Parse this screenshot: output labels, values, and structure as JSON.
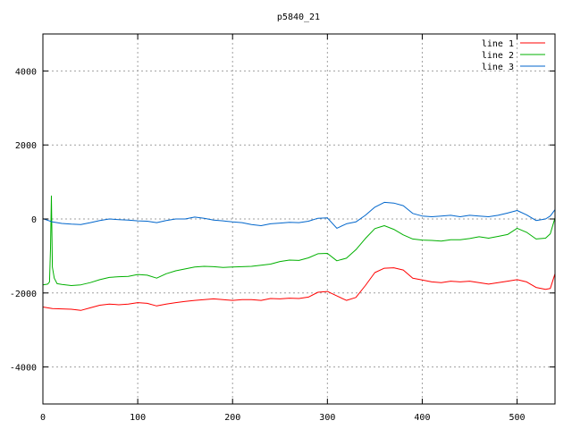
{
  "chart_data": {
    "type": "line",
    "title": "p5840_21",
    "xlabel": "",
    "ylabel": "",
    "xlim": [
      0,
      540
    ],
    "ylim": [
      -5000,
      5000
    ],
    "x_ticks": [
      0,
      100,
      200,
      300,
      400,
      500
    ],
    "y_ticks": [
      -4000,
      -2000,
      0,
      2000,
      4000
    ],
    "grid": true,
    "legend_position": "top-right",
    "series": [
      {
        "name": "line 1",
        "color": "#ff0000",
        "points": [
          [
            0,
            -2380
          ],
          [
            10,
            -2420
          ],
          [
            20,
            -2430
          ],
          [
            30,
            -2440
          ],
          [
            40,
            -2470
          ],
          [
            50,
            -2400
          ],
          [
            60,
            -2330
          ],
          [
            70,
            -2300
          ],
          [
            80,
            -2320
          ],
          [
            90,
            -2300
          ],
          [
            100,
            -2260
          ],
          [
            110,
            -2280
          ],
          [
            120,
            -2350
          ],
          [
            130,
            -2300
          ],
          [
            140,
            -2260
          ],
          [
            150,
            -2230
          ],
          [
            160,
            -2200
          ],
          [
            170,
            -2180
          ],
          [
            180,
            -2160
          ],
          [
            190,
            -2180
          ],
          [
            200,
            -2200
          ],
          [
            210,
            -2180
          ],
          [
            220,
            -2180
          ],
          [
            230,
            -2200
          ],
          [
            240,
            -2150
          ],
          [
            250,
            -2160
          ],
          [
            260,
            -2140
          ],
          [
            270,
            -2150
          ],
          [
            280,
            -2110
          ],
          [
            290,
            -1980
          ],
          [
            300,
            -1960
          ],
          [
            310,
            -2080
          ],
          [
            320,
            -2200
          ],
          [
            330,
            -2120
          ],
          [
            340,
            -1800
          ],
          [
            350,
            -1450
          ],
          [
            360,
            -1330
          ],
          [
            370,
            -1320
          ],
          [
            380,
            -1380
          ],
          [
            390,
            -1600
          ],
          [
            400,
            -1650
          ],
          [
            410,
            -1700
          ],
          [
            420,
            -1720
          ],
          [
            430,
            -1680
          ],
          [
            440,
            -1700
          ],
          [
            450,
            -1680
          ],
          [
            460,
            -1720
          ],
          [
            470,
            -1760
          ],
          [
            480,
            -1720
          ],
          [
            490,
            -1680
          ],
          [
            500,
            -1640
          ],
          [
            510,
            -1700
          ],
          [
            520,
            -1850
          ],
          [
            530,
            -1900
          ],
          [
            535,
            -1880
          ],
          [
            540,
            -1480
          ]
        ]
      },
      {
        "name": "line 2",
        "color": "#00b000",
        "points": [
          [
            0,
            -1780
          ],
          [
            5,
            -1760
          ],
          [
            7,
            -1700
          ],
          [
            8,
            -800
          ],
          [
            9,
            620
          ],
          [
            10,
            -1300
          ],
          [
            12,
            -1600
          ],
          [
            15,
            -1750
          ],
          [
            20,
            -1770
          ],
          [
            30,
            -1800
          ],
          [
            40,
            -1780
          ],
          [
            50,
            -1720
          ],
          [
            60,
            -1640
          ],
          [
            70,
            -1580
          ],
          [
            80,
            -1560
          ],
          [
            90,
            -1550
          ],
          [
            100,
            -1500
          ],
          [
            110,
            -1520
          ],
          [
            120,
            -1600
          ],
          [
            130,
            -1480
          ],
          [
            140,
            -1400
          ],
          [
            150,
            -1350
          ],
          [
            160,
            -1300
          ],
          [
            170,
            -1280
          ],
          [
            180,
            -1290
          ],
          [
            190,
            -1310
          ],
          [
            200,
            -1300
          ],
          [
            210,
            -1290
          ],
          [
            220,
            -1280
          ],
          [
            230,
            -1250
          ],
          [
            240,
            -1220
          ],
          [
            250,
            -1150
          ],
          [
            260,
            -1110
          ],
          [
            270,
            -1120
          ],
          [
            280,
            -1050
          ],
          [
            290,
            -940
          ],
          [
            300,
            -930
          ],
          [
            310,
            -1130
          ],
          [
            320,
            -1060
          ],
          [
            330,
            -830
          ],
          [
            340,
            -530
          ],
          [
            350,
            -260
          ],
          [
            360,
            -180
          ],
          [
            370,
            -280
          ],
          [
            380,
            -430
          ],
          [
            390,
            -540
          ],
          [
            400,
            -570
          ],
          [
            410,
            -580
          ],
          [
            420,
            -600
          ],
          [
            430,
            -560
          ],
          [
            440,
            -560
          ],
          [
            450,
            -530
          ],
          [
            460,
            -480
          ],
          [
            470,
            -520
          ],
          [
            480,
            -470
          ],
          [
            490,
            -420
          ],
          [
            500,
            -250
          ],
          [
            510,
            -360
          ],
          [
            520,
            -540
          ],
          [
            530,
            -520
          ],
          [
            535,
            -400
          ],
          [
            540,
            30
          ]
        ]
      },
      {
        "name": "line 3",
        "color": "#0066cc",
        "points": [
          [
            0,
            10
          ],
          [
            10,
            -80
          ],
          [
            20,
            -120
          ],
          [
            30,
            -140
          ],
          [
            40,
            -150
          ],
          [
            50,
            -100
          ],
          [
            60,
            -40
          ],
          [
            70,
            0
          ],
          [
            80,
            -20
          ],
          [
            90,
            -30
          ],
          [
            100,
            -50
          ],
          [
            110,
            -60
          ],
          [
            120,
            -100
          ],
          [
            130,
            -40
          ],
          [
            140,
            0
          ],
          [
            150,
            0
          ],
          [
            160,
            50
          ],
          [
            170,
            20
          ],
          [
            180,
            -30
          ],
          [
            190,
            -50
          ],
          [
            200,
            -80
          ],
          [
            210,
            -100
          ],
          [
            220,
            -150
          ],
          [
            230,
            -180
          ],
          [
            240,
            -130
          ],
          [
            250,
            -110
          ],
          [
            260,
            -90
          ],
          [
            270,
            -100
          ],
          [
            280,
            -60
          ],
          [
            290,
            20
          ],
          [
            300,
            30
          ],
          [
            310,
            -250
          ],
          [
            320,
            -130
          ],
          [
            330,
            -80
          ],
          [
            340,
            100
          ],
          [
            350,
            320
          ],
          [
            360,
            450
          ],
          [
            370,
            430
          ],
          [
            380,
            360
          ],
          [
            390,
            150
          ],
          [
            400,
            80
          ],
          [
            410,
            60
          ],
          [
            420,
            80
          ],
          [
            430,
            100
          ],
          [
            440,
            60
          ],
          [
            450,
            100
          ],
          [
            460,
            80
          ],
          [
            470,
            60
          ],
          [
            480,
            100
          ],
          [
            490,
            160
          ],
          [
            500,
            230
          ],
          [
            510,
            110
          ],
          [
            520,
            -40
          ],
          [
            530,
            0
          ],
          [
            535,
            80
          ],
          [
            540,
            250
          ]
        ]
      }
    ]
  }
}
